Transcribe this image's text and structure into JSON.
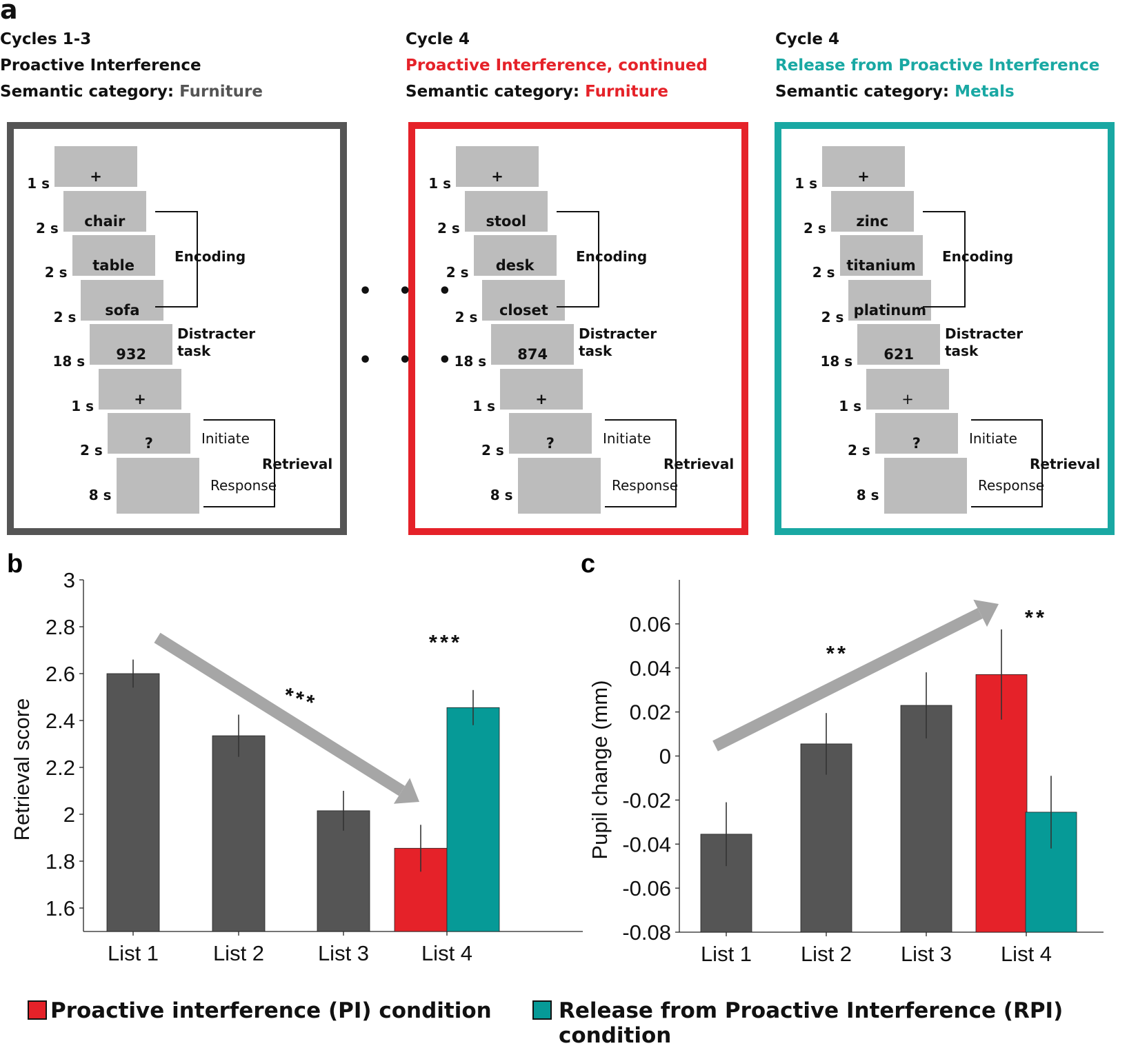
{
  "panel_a": {
    "letter": "a",
    "columns": [
      {
        "title": "Cycles 1-3",
        "condition": "Proactive Interference",
        "category_label": "Semantic category:",
        "category": "Furniture",
        "color": "#555555",
        "cards": [
          "+",
          "chair",
          "table",
          "sofa",
          "932",
          "+",
          "?",
          ""
        ],
        "times": [
          "1 s",
          "2 s",
          "2 s",
          "2 s",
          "18 s",
          "1 s",
          "2 s",
          "8 s"
        ]
      },
      {
        "title": "Cycle 4",
        "condition": "Proactive Interference, continued",
        "category_label": "Semantic category:",
        "category": "Furniture",
        "color": "#e52229",
        "cards": [
          "+",
          "stool",
          "desk",
          "closet",
          "874",
          "+",
          "?",
          ""
        ],
        "times": [
          "1 s",
          "2 s",
          "2 s",
          "2 s",
          "18 s",
          "1 s",
          "2 s",
          "8 s"
        ]
      },
      {
        "title": "Cycle 4",
        "condition": "Release from Proactive Interference",
        "category_label": "Semantic category:",
        "category": "Metals",
        "color": "#19a8a3",
        "cards": [
          "+",
          "zinc",
          "titanium",
          "platinum",
          "621",
          "+",
          "?",
          ""
        ],
        "times": [
          "1 s",
          "2 s",
          "2 s",
          "2 s",
          "18 s",
          "1 s",
          "2 s",
          "8 s"
        ]
      }
    ],
    "phases": {
      "encoding": "Encoding",
      "distracter": "Distracter",
      "distracter2": "task",
      "retrieval": "Retrieval",
      "initiate": "Initiate",
      "response": "Response"
    },
    "ellipsis": "• • •"
  },
  "chart_data": [
    {
      "panel": "b",
      "type": "bar",
      "ylabel": "Retrieval score",
      "xlabel": "",
      "ylim": [
        1.5,
        3
      ],
      "yticks": [
        "1.6",
        "1.8",
        "2",
        "2.2",
        "2.4",
        "2.6",
        "2.8",
        "3"
      ],
      "categories": [
        "List 1",
        "List 2",
        "List 3",
        "List 4"
      ],
      "bars": [
        {
          "category": "List 1",
          "value": 2.6,
          "err": 0.06,
          "color": "#555555"
        },
        {
          "category": "List 2",
          "value": 2.335,
          "err": 0.09,
          "color": "#555555"
        },
        {
          "category": "List 3",
          "value": 2.015,
          "err": 0.085,
          "color": "#555555"
        },
        {
          "category": "List 4",
          "value": 1.855,
          "err": 0.1,
          "color": "#e52229",
          "condition": "PI"
        },
        {
          "category": "List 4",
          "value": 2.455,
          "err": 0.075,
          "color": "#069a97",
          "condition": "RPI"
        }
      ],
      "annotations": [
        "***",
        "***"
      ],
      "trend": "down"
    },
    {
      "panel": "c",
      "type": "bar",
      "ylabel": "Pupil change (mm)",
      "xlabel": "",
      "ylim": [
        -0.08,
        0.08
      ],
      "yticks": [
        "-0.08",
        "-0.06",
        "-0.04",
        "-0.02",
        "0",
        "0.02",
        "0.04",
        "0.06"
      ],
      "categories": [
        "List 1",
        "List 2",
        "List 3",
        "List 4"
      ],
      "bars": [
        {
          "category": "List 1",
          "value": -0.0355,
          "err": 0.0145,
          "color": "#555555"
        },
        {
          "category": "List 2",
          "value": 0.0055,
          "err": 0.014,
          "color": "#555555"
        },
        {
          "category": "List 3",
          "value": 0.023,
          "err": 0.015,
          "color": "#555555"
        },
        {
          "category": "List 4",
          "value": 0.037,
          "err": 0.0205,
          "color": "#e52229",
          "condition": "PI"
        },
        {
          "category": "List 4",
          "value": -0.0255,
          "err": 0.0165,
          "color": "#069a97",
          "condition": "RPI"
        }
      ],
      "annotations": [
        "**",
        "**"
      ],
      "trend": "up"
    }
  ],
  "legend": [
    {
      "label": "Proactive interference (PI) condition",
      "color": "#e52229"
    },
    {
      "label": "Release from Proactive Interference (RPI) condition",
      "color": "#069a97"
    }
  ]
}
